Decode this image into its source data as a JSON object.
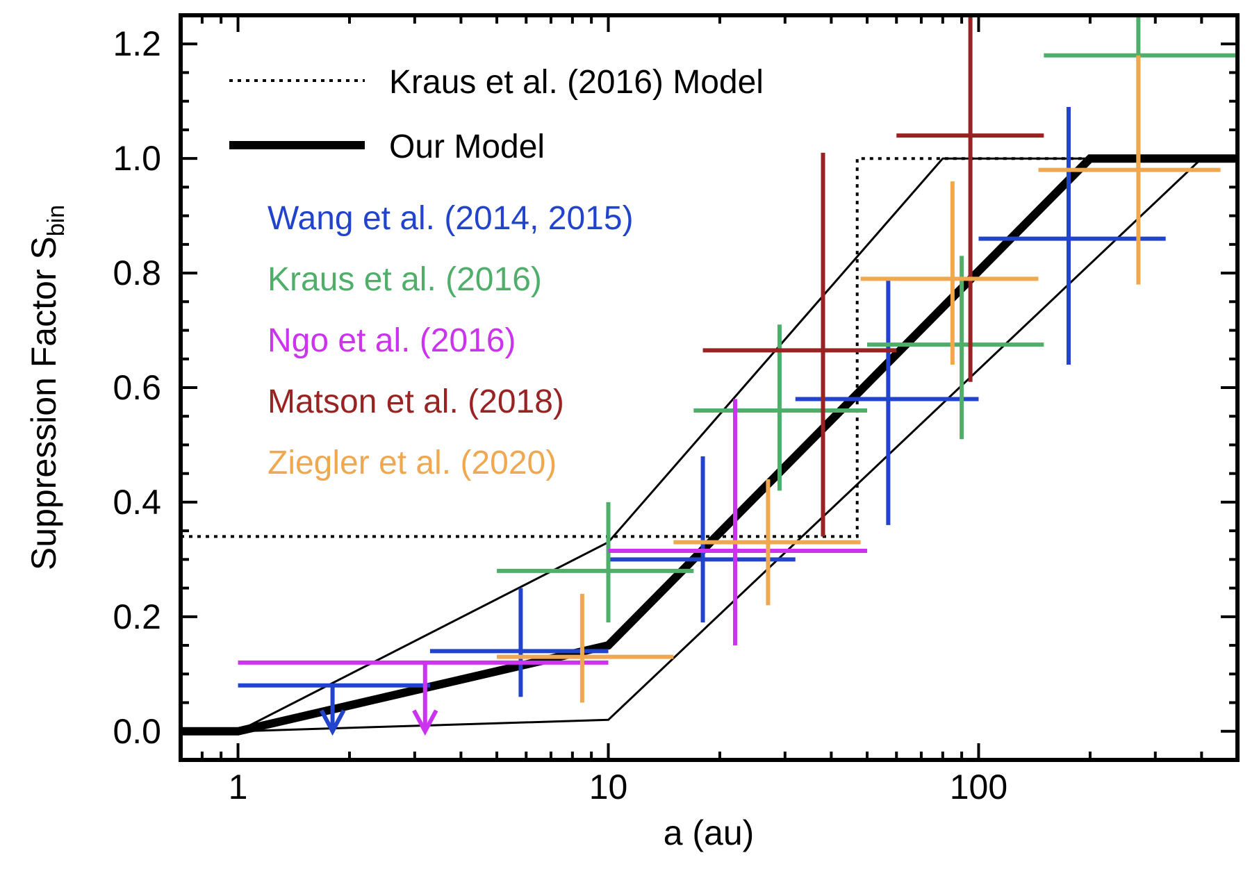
{
  "chart_data": {
    "type": "scatter",
    "xlabel": "a (au)",
    "ylabel": "Suppression Factor S",
    "ylabel_sub": "bin",
    "xscale": "log",
    "xlim": [
      0.7,
      500
    ],
    "ylim": [
      -0.05,
      1.25
    ],
    "x_ticks": [
      {
        "value": 1,
        "label": "1"
      },
      {
        "value": 10,
        "label": "10"
      },
      {
        "value": 100,
        "label": "100"
      }
    ],
    "y_ticks": [
      {
        "value": 0.0,
        "label": "0.0"
      },
      {
        "value": 0.2,
        "label": "0.2"
      },
      {
        "value": 0.4,
        "label": "0.4"
      },
      {
        "value": 0.6,
        "label": "0.6"
      },
      {
        "value": 0.8,
        "label": "0.8"
      },
      {
        "value": 1.0,
        "label": "1.0"
      },
      {
        "value": 1.2,
        "label": "1.2"
      }
    ],
    "legend_position": "top-left",
    "models": [
      {
        "name": "Kraus et al. (2016) Model",
        "style": "dotted",
        "color": "#000000",
        "points": [
          [
            0.7,
            0.34
          ],
          [
            47,
            0.34
          ],
          [
            47,
            1.0
          ],
          [
            500,
            1.0
          ]
        ]
      },
      {
        "name": "Our Model",
        "style": "thick",
        "color": "#000000",
        "points": [
          [
            0.7,
            0.0
          ],
          [
            1,
            0.0
          ],
          [
            10,
            0.15
          ],
          [
            200,
            1.0
          ],
          [
            500,
            1.0
          ]
        ]
      }
    ],
    "envelope": [
      {
        "points": [
          [
            1,
            0.0
          ],
          [
            10,
            0.33
          ],
          [
            80,
            1.0
          ],
          [
            500,
            1.0
          ]
        ]
      },
      {
        "points": [
          [
            1,
            0.0
          ],
          [
            10,
            0.02
          ],
          [
            400,
            1.0
          ],
          [
            500,
            1.0
          ]
        ]
      }
    ],
    "series": [
      {
        "name": "Wang et al. (2014, 2015)",
        "color": "#2244cc",
        "points": [
          {
            "x": 1.8,
            "y": 0.08,
            "xmin": 1.0,
            "xmax": 3.3,
            "upper_limit": true
          },
          {
            "x": 5.8,
            "y": 0.14,
            "xmin": 3.3,
            "xmax": 10,
            "ymin": 0.06,
            "ymax": 0.25
          },
          {
            "x": 18,
            "y": 0.3,
            "xmin": 10,
            "xmax": 32,
            "ymin": 0.19,
            "ymax": 0.48
          },
          {
            "x": 57,
            "y": 0.58,
            "xmin": 32,
            "xmax": 100,
            "ymin": 0.36,
            "ymax": 0.79
          },
          {
            "x": 175,
            "y": 0.86,
            "xmin": 100,
            "xmax": 320,
            "ymin": 0.64,
            "ymax": 1.09
          }
        ]
      },
      {
        "name": "Kraus et al. (2016)",
        "color": "#4fae6a",
        "points": [
          {
            "x": 10,
            "y": 0.28,
            "xmin": 5.0,
            "xmax": 17,
            "ymin": 0.19,
            "ymax": 0.4
          },
          {
            "x": 29,
            "y": 0.56,
            "xmin": 17,
            "xmax": 50,
            "ymin": 0.42,
            "ymax": 0.71
          },
          {
            "x": 90,
            "y": 0.675,
            "xmin": 50,
            "xmax": 150,
            "ymin": 0.51,
            "ymax": 0.83
          },
          {
            "x": 270,
            "y": 1.18,
            "xmin": 150,
            "xmax": 500,
            "ymin": 0.98,
            "ymax": 1.25
          }
        ]
      },
      {
        "name": "Ngo et al. (2016)",
        "color": "#cc33ee",
        "points": [
          {
            "x": 3.2,
            "y": 0.12,
            "xmin": 1.0,
            "xmax": 10,
            "upper_limit": true
          },
          {
            "x": 22,
            "y": 0.315,
            "xmin": 10,
            "xmax": 50,
            "ymin": 0.15,
            "ymax": 0.58
          }
        ]
      },
      {
        "name": "Matson et al. (2018)",
        "color": "#992222",
        "points": [
          {
            "x": 38,
            "y": 0.665,
            "xmin": 18,
            "xmax": 60,
            "ymin": 0.34,
            "ymax": 1.01
          },
          {
            "x": 95,
            "y": 1.04,
            "xmin": 60,
            "xmax": 150,
            "ymin": 0.61,
            "ymax": 1.25
          }
        ]
      },
      {
        "name": "Ziegler et al. (2020)",
        "color": "#f0a850",
        "points": [
          {
            "x": 8.5,
            "y": 0.13,
            "xmin": 5.0,
            "xmax": 15,
            "ymin": 0.05,
            "ymax": 0.24
          },
          {
            "x": 27,
            "y": 0.33,
            "xmin": 15,
            "xmax": 48,
            "ymin": 0.22,
            "ymax": 0.44
          },
          {
            "x": 85,
            "y": 0.79,
            "xmin": 48,
            "xmax": 145,
            "ymin": 0.64,
            "ymax": 0.96
          },
          {
            "x": 270,
            "y": 0.98,
            "xmin": 145,
            "xmax": 450,
            "ymin": 0.78,
            "ymax": 1.18
          }
        ]
      }
    ]
  }
}
